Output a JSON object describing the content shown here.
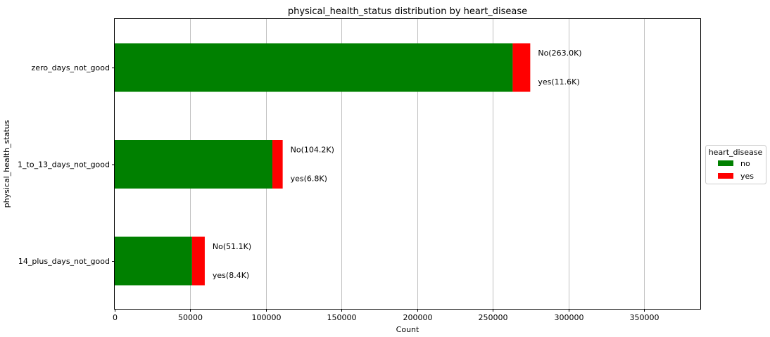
{
  "chart_data": {
    "type": "bar",
    "orientation": "horizontal",
    "stacked": true,
    "title": "physical_health_status distribution by heart_disease",
    "xlabel": "Count",
    "ylabel": "physical_health_status",
    "xlim": [
      0,
      387000
    ],
    "xticks": [
      0,
      50000,
      100000,
      150000,
      200000,
      250000,
      300000,
      350000
    ],
    "grid": "vertical",
    "categories": [
      "zero_days_not_good",
      "1_to_13_days_not_good",
      "14_plus_days_not_good"
    ],
    "series": [
      {
        "name": "no",
        "color": "#008000",
        "values": [
          263000,
          104200,
          51100
        ]
      },
      {
        "name": "yes",
        "color": "#ff0000",
        "values": [
          11600,
          6800,
          8400
        ]
      }
    ],
    "annotations": [
      {
        "no": "No(263.0K)",
        "yes": "yes(11.6K)"
      },
      {
        "no": "No(104.2K)",
        "yes": "yes(6.8K)"
      },
      {
        "no": "No(51.1K)",
        "yes": "yes(8.4K)"
      }
    ],
    "legend": {
      "title": "heart_disease",
      "placement": "right"
    }
  }
}
